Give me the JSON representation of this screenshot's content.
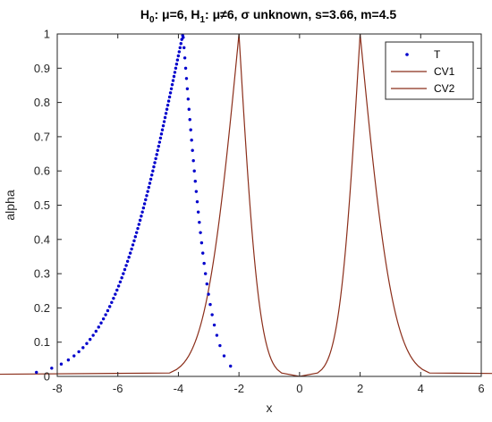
{
  "chart_data": {
    "type": "line",
    "title": {
      "h0": "H",
      "h0_sub": "0",
      "h0_rest": ": μ=6, ",
      "h1": "H",
      "h1_sub": "1",
      "h1_rest": ": μ≠6, σ unknown, s=3.66, m=4.5"
    },
    "xlabel": "x",
    "ylabel": "alpha",
    "xlim": [
      -8,
      6
    ],
    "ylim": [
      0,
      1
    ],
    "x_ticks": [
      -8,
      -6,
      -4,
      -2,
      0,
      2,
      4,
      6
    ],
    "x_tick_labels": [
      "-8",
      "-6",
      "-4",
      "-2",
      "0",
      "2",
      "4",
      "6"
    ],
    "y_ticks": [
      0,
      0.1,
      0.2,
      0.3,
      0.4,
      0.5,
      0.6,
      0.7,
      0.8,
      0.9,
      1
    ],
    "y_tick_labels": [
      "0",
      "0.1",
      "0.2",
      "0.3",
      "0.4",
      "0.5",
      "0.6",
      "0.7",
      "0.8",
      "0.9",
      "1"
    ],
    "grid": false,
    "legend_position": "top-right",
    "series": [
      {
        "name": "T",
        "style": "dots",
        "color": "#0000cc",
        "note": "T(alpha) = -0.8197 - t_{df=99}(1-alpha/2); x range about -7.74 to -2.45",
        "points": [
          [
            -7.74,
            0.0
          ],
          [
            -7.05,
            0.05
          ],
          [
            -6.58,
            0.1
          ],
          [
            -6.02,
            0.2
          ],
          [
            -5.58,
            0.3
          ],
          [
            -5.22,
            0.4
          ],
          [
            -4.89,
            0.5
          ],
          [
            -4.57,
            0.6
          ],
          [
            -4.25,
            0.7
          ],
          [
            -3.94,
            0.8
          ],
          [
            -3.88,
            0.85
          ],
          [
            -3.87,
            0.95
          ],
          [
            -3.85,
            1.0
          ],
          [
            -3.1,
            0.1
          ],
          [
            -2.45,
            0.0
          ]
        ]
      },
      {
        "name": "CV1",
        "style": "line",
        "color": "#8b2e1a",
        "points": [
          [
            -5.3,
            0.0
          ],
          [
            -3.1,
            0.34
          ],
          [
            -2.0,
            1.0
          ],
          [
            -1.0,
            0.32
          ],
          [
            0.0,
            0.0
          ]
        ]
      },
      {
        "name": "CV2",
        "style": "line",
        "color": "#8b2e1a",
        "points": [
          [
            0.0,
            0.0
          ],
          [
            1.0,
            0.32
          ],
          [
            2.0,
            1.0
          ],
          [
            3.1,
            0.34
          ],
          [
            5.3,
            0.0
          ]
        ]
      }
    ]
  }
}
